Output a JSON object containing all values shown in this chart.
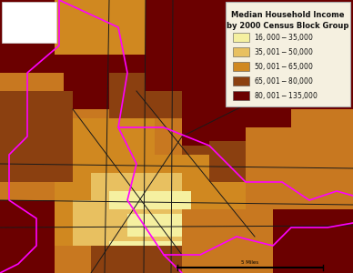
{
  "title_line1": "Median Household Income",
  "title_line2": "by 2000 Census Block Group",
  "legend_items": [
    {
      "label": "$16,000 - $35,000",
      "color": "#F5F0A0"
    },
    {
      "label": "$35,001 - $50,000",
      "color": "#E8C060"
    },
    {
      "label": "$50,001 - $65,000",
      "color": "#D08820"
    },
    {
      "label": "$65,001 - $80,000",
      "color": "#8B4010"
    },
    {
      "label": "$80,001 - $135,000",
      "color": "#6B0000"
    }
  ],
  "map_bg_color": "#C87820",
  "legend_bg": "#F5F0E0",
  "legend_border": "#AAAAAA",
  "title_fontsize": 6.0,
  "legend_fontsize": 5.5,
  "fig_width": 3.88,
  "fig_height": 3.0,
  "dpi": 100,
  "map_colors": {
    "light_yellow": "#F5F0A0",
    "gold": "#E8C060",
    "orange": "#D08820",
    "brown": "#8B4010",
    "dark_red": "#6B0000",
    "mid_orange": "#C87820"
  }
}
